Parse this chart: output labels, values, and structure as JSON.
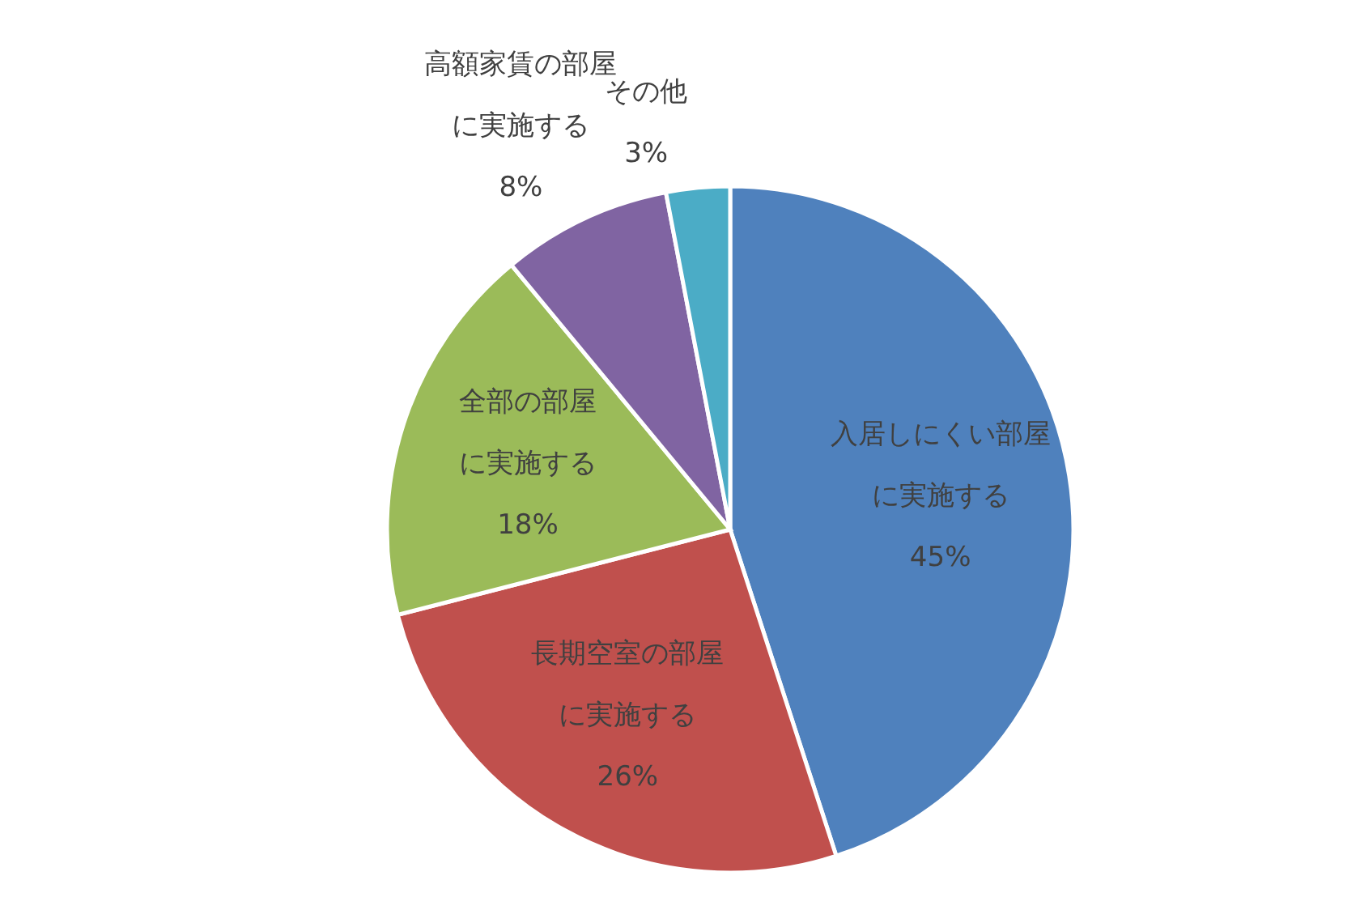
{
  "chart_data": {
    "type": "pie",
    "categories": [
      "入居しにくい部屋に実施する",
      "長期空室の部屋に実施する",
      "全部の部屋に実施する",
      "高額家賃の部屋に実施する",
      "その他"
    ],
    "values": [
      45,
      26,
      18,
      8,
      3
    ],
    "value_labels": [
      "45%",
      "26%",
      "18%",
      "8%",
      "3%"
    ],
    "colors": [
      "#4f81bd",
      "#c0504d",
      "#9bbb59",
      "#8064a2",
      "#4bacc6"
    ]
  }
}
